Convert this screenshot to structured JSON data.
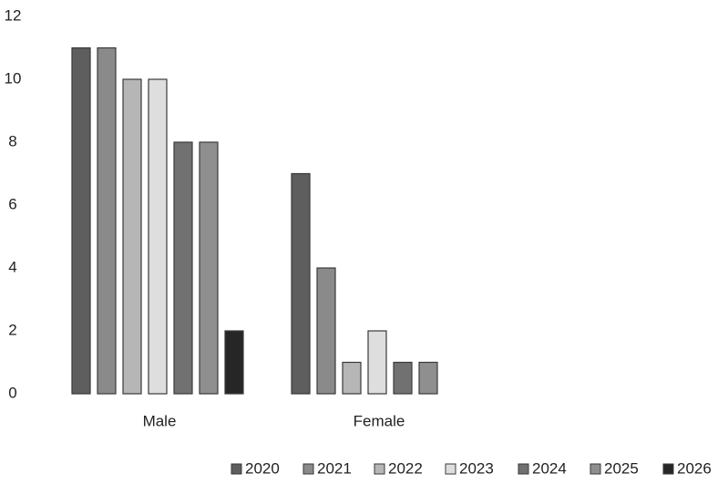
{
  "chart_data": {
    "type": "bar",
    "categories": [
      "Male",
      "Female"
    ],
    "series": [
      {
        "name": "2020",
        "values": [
          11,
          7
        ],
        "color": "#5e5e5e"
      },
      {
        "name": "2021",
        "values": [
          11,
          4
        ],
        "color": "#8a8a8a"
      },
      {
        "name": "2022",
        "values": [
          10,
          1
        ],
        "color": "#b6b6b6"
      },
      {
        "name": "2023",
        "values": [
          10,
          2
        ],
        "color": "#dedede"
      },
      {
        "name": "2024",
        "values": [
          8,
          1
        ],
        "color": "#717171"
      },
      {
        "name": "2025",
        "values": [
          8,
          1
        ],
        "color": "#8f8f8f"
      },
      {
        "name": "2026",
        "values": [
          2,
          null
        ],
        "color": "#262626"
      }
    ],
    "title": "",
    "xlabel": "",
    "ylabel": "",
    "ylim": [
      0,
      12
    ],
    "yticks": [
      "0",
      "2",
      "4",
      "6",
      "8",
      "10",
      "12"
    ],
    "grid": false,
    "legend": "bottom-right"
  }
}
